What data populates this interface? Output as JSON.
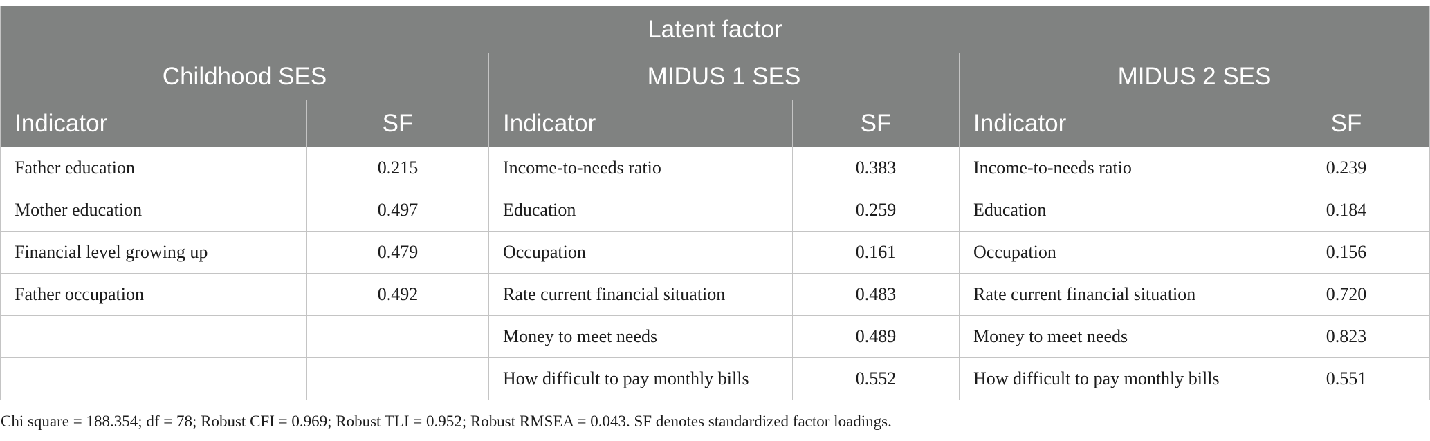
{
  "table": {
    "title": "Latent factor",
    "groups": [
      "Childhood SES",
      "MIDUS 1 SES",
      "MIDUS 2 SES"
    ],
    "col_indicator": "Indicator",
    "col_sf": "SF",
    "rows": [
      {
        "c_ind": "Father education",
        "c_sf": "0.215",
        "m1_ind": "Income-to-needs ratio",
        "m1_sf": "0.383",
        "m2_ind": "Income-to-needs ratio",
        "m2_sf": "0.239"
      },
      {
        "c_ind": "Mother education",
        "c_sf": "0.497",
        "m1_ind": "Education",
        "m1_sf": "0.259",
        "m2_ind": "Education",
        "m2_sf": "0.184"
      },
      {
        "c_ind": "Financial level growing up",
        "c_sf": "0.479",
        "m1_ind": "Occupation",
        "m1_sf": "0.161",
        "m2_ind": "Occupation",
        "m2_sf": "0.156"
      },
      {
        "c_ind": "Father occupation",
        "c_sf": "0.492",
        "m1_ind": "Rate current financial situation",
        "m1_sf": "0.483",
        "m2_ind": "Rate current financial situation",
        "m2_sf": "0.720"
      },
      {
        "c_ind": "",
        "c_sf": "",
        "m1_ind": "Money to meet needs",
        "m1_sf": "0.489",
        "m2_ind": "Money to meet needs",
        "m2_sf": "0.823"
      },
      {
        "c_ind": "",
        "c_sf": "",
        "m1_ind": "How difficult to pay monthly bills",
        "m1_sf": "0.552",
        "m2_ind": "How difficult to pay monthly bills",
        "m2_sf": "0.551"
      }
    ]
  },
  "note": "Chi square = 188.354; df = 78; Robust CFI = 0.969; Robust TLI = 0.952; Robust RMSEA = 0.043. SF denotes standardized factor loadings."
}
